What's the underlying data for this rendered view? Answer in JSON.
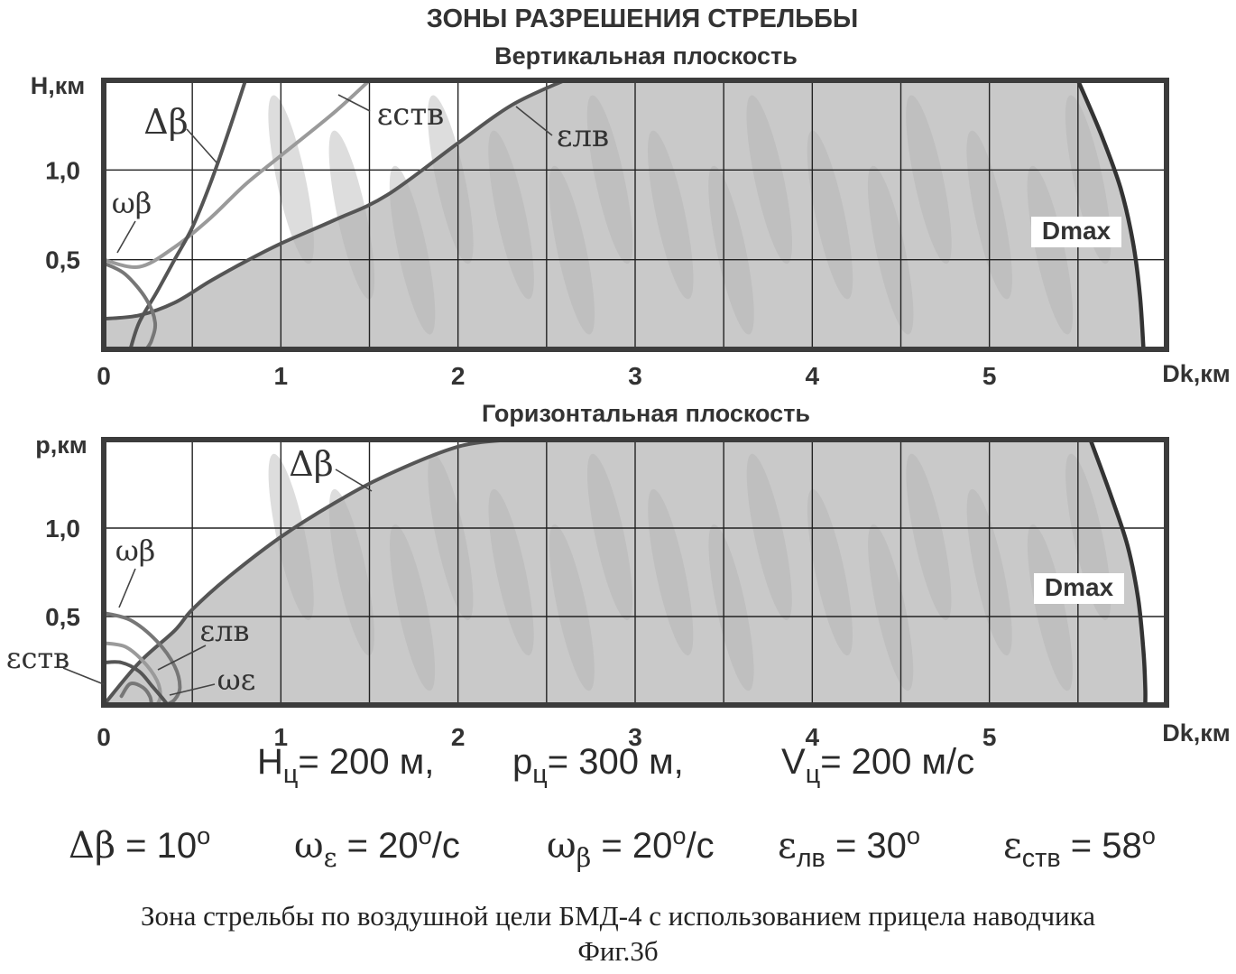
{
  "figure": {
    "title": "ЗОНЫ РАЗРЕШЕНИЯ СТРЕЛЬБЫ"
  },
  "colors": {
    "zone_fill": "#c9c9c9",
    "zone_streak": "#b4b4b4",
    "frame": "#3c3c3c",
    "curve_dark": "#555555",
    "curve_light": "#9a9a9a",
    "dmax_curve": "#333333",
    "grid": "#222222"
  },
  "chart_data": [
    {
      "type": "area",
      "title": "Вертикальная плоскость",
      "ylabel": "H,км",
      "xlabel": "Dk,км",
      "xlim": [
        0,
        6
      ],
      "ylim": [
        0,
        1.5
      ],
      "grid": true,
      "x_ticks": [
        "0",
        "1",
        "2",
        "3",
        "4",
        "5"
      ],
      "y_ticks": [
        {
          "value": 0.5,
          "label": "0,5"
        },
        {
          "value": 1.0,
          "label": "1,0"
        }
      ],
      "series": [
        {
          "name": "εлв",
          "color": "#555555",
          "x": [
            0,
            0.2,
            0.4,
            0.6,
            0.8,
            1.0,
            1.3,
            1.6,
            2.0,
            2.3,
            2.6
          ],
          "y": [
            0.17,
            0.19,
            0.26,
            0.38,
            0.49,
            0.59,
            0.72,
            0.86,
            1.15,
            1.36,
            1.5
          ]
        },
        {
          "name": "εств",
          "color": "#9a9a9a",
          "x": [
            0,
            0.2,
            0.4,
            0.6,
            0.8,
            1.0,
            1.3,
            1.5
          ],
          "y": [
            0.5,
            0.46,
            0.57,
            0.73,
            0.92,
            1.08,
            1.32,
            1.5
          ]
        },
        {
          "name": "Δβ",
          "color": "#555555",
          "x": [
            0.15,
            0.2,
            0.3,
            0.4,
            0.5,
            0.6,
            0.7,
            0.8
          ],
          "y": [
            0,
            0.15,
            0.32,
            0.5,
            0.68,
            0.92,
            1.2,
            1.5
          ]
        },
        {
          "name": "ωβ",
          "color": "#777777",
          "x": [
            0,
            0.12,
            0.24,
            0.29,
            0.27,
            0.24
          ],
          "y": [
            0.48,
            0.42,
            0.28,
            0.15,
            0.05,
            0
          ]
        },
        {
          "name": "Dmax",
          "color": "#333333",
          "x": [
            5.5,
            5.63,
            5.74,
            5.81,
            5.85,
            5.87
          ],
          "y": [
            1.5,
            1.2,
            0.9,
            0.6,
            0.3,
            0
          ]
        }
      ],
      "annotations": [
        "Δβ",
        "εств",
        "εлв",
        "ωβ",
        "Dmax"
      ]
    },
    {
      "type": "area",
      "title": "Горизонтальная плоскость",
      "ylabel": "р,км",
      "xlabel": "Dk,км",
      "xlim": [
        0,
        6
      ],
      "ylim": [
        0,
        1.5
      ],
      "grid": true,
      "x_ticks": [
        "0",
        "1",
        "2",
        "3",
        "4",
        "5"
      ],
      "y_ticks": [
        {
          "value": 0.5,
          "label": "0,5"
        },
        {
          "value": 1.0,
          "label": "1,0"
        }
      ],
      "series": [
        {
          "name": "Δβ",
          "color": "#555555",
          "x": [
            0,
            0.2,
            0.4,
            0.5,
            0.7,
            1.0,
            1.3,
            1.6,
            2.0,
            2.3
          ],
          "y": [
            0,
            0.24,
            0.42,
            0.54,
            0.72,
            0.95,
            1.14,
            1.3,
            1.46,
            1.5
          ]
        },
        {
          "name": "ωβ",
          "color": "#777777",
          "x": [
            0,
            0.15,
            0.3,
            0.4,
            0.43,
            0.4,
            0.35
          ],
          "y": [
            0.52,
            0.48,
            0.36,
            0.22,
            0.1,
            0.03,
            0
          ]
        },
        {
          "name": "εств",
          "color": "#9a9a9a",
          "x": [
            0,
            0.12,
            0.22,
            0.3,
            0.32,
            0.3
          ],
          "y": [
            0.35,
            0.33,
            0.25,
            0.14,
            0.05,
            0
          ]
        },
        {
          "name": "εлв",
          "color": "#555555",
          "x": [
            0,
            0.1,
            0.2,
            0.27,
            0.33,
            0.36,
            0.35
          ],
          "y": [
            0.24,
            0.24,
            0.19,
            0.11,
            0.04,
            0,
            0
          ]
        },
        {
          "name": "ωε",
          "color": "#777777",
          "x": [
            0.1,
            0.15,
            0.22,
            0.26,
            0.27
          ],
          "y": [
            0.05,
            0.12,
            0.1,
            0.05,
            0
          ]
        },
        {
          "name": "Dmax",
          "color": "#333333",
          "x": [
            5.57,
            5.68,
            5.78,
            5.84,
            5.87,
            5.88,
            5.88
          ],
          "y": [
            1.5,
            1.2,
            0.9,
            0.6,
            0.3,
            0.1,
            0
          ]
        }
      ],
      "annotations": [
        "Δβ",
        "ωβ",
        "εлв",
        "εств",
        "ωε",
        "Dmax"
      ]
    }
  ],
  "target_params": {
    "h_label": "Н",
    "h_sub": "ц",
    "h_value": "= 200 м,",
    "p_label": "р",
    "p_sub": "ц",
    "p_value": "= 300 м,",
    "v_label": "V",
    "v_sub": "ц",
    "v_value": "= 200 м/с"
  },
  "angle_params": {
    "db_symbol": "Δβ",
    "db_value": " = 10",
    "db_unit_sup": "o",
    "we_symbol": "ω",
    "we_sub": "ε",
    "we_value": " = 20",
    "we_unit_sup": "o",
    "we_rate": "/с",
    "wb_symbol": "ω",
    "wb_sub": "β",
    "wb_value": " = 20",
    "wb_unit_sup": "o",
    "wb_rate": "/с",
    "elv_symbol": "ε",
    "elv_sub": "лв",
    "elv_value": " = 30",
    "elv_unit_sup": "o",
    "estv_symbol": "ε",
    "estv_sub": "ств",
    "estv_value": " = 58",
    "estv_unit_sup": "o"
  },
  "caption": {
    "line1": "Зона стрельбы по воздушной цели БМД-4 с использованием прицела наводчика",
    "line2": "Фиг.3б"
  }
}
